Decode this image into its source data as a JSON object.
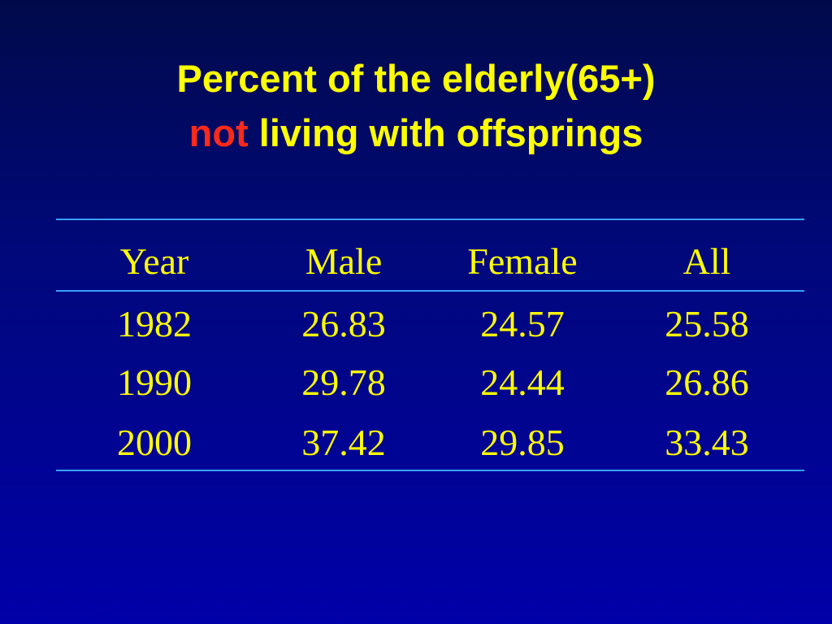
{
  "slide": {
    "title_line1": "Percent of the elderly(65+)",
    "title_highlight": "not",
    "title_line2_rest": " living with offsprings"
  },
  "table": {
    "headers": [
      "Year",
      "Male",
      "Female",
      "All"
    ],
    "rows": [
      [
        "1982",
        "26.83",
        "24.57",
        "25.58"
      ],
      [
        "1990",
        "29.78",
        "24.44",
        "26.86"
      ],
      [
        "2000",
        "37.42",
        "29.85",
        "33.43"
      ]
    ]
  },
  "colors": {
    "background_top": "#000a4a",
    "background_bottom": "#0000a8",
    "text": "#ffff00",
    "highlight": "#ff2a1a",
    "rule": "#3aa0ff"
  }
}
